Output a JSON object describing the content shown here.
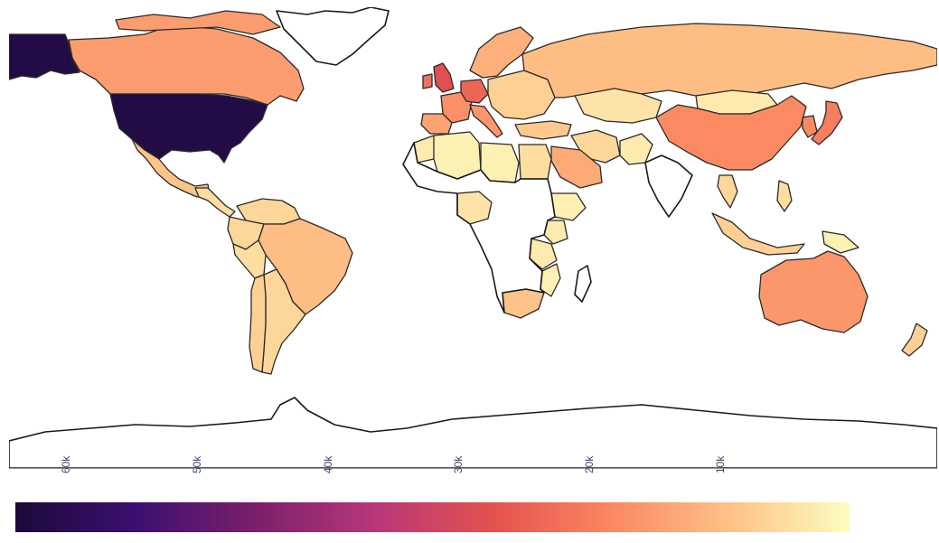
{
  "colors": {
    "ramp": [
      "#fcfdbf",
      "#fec287",
      "#fb8861",
      "#e3514f",
      "#b73779",
      "#7a1f6b",
      "#3b0f70",
      "#1c0a3a"
    ],
    "no_data": "#ffffff",
    "stroke": "#222222"
  },
  "colorbar": {
    "min": 0,
    "max": 64000,
    "ticks": [
      {
        "value": 60000,
        "label": "60k"
      },
      {
        "value": 50000,
        "label": "50k"
      },
      {
        "value": 40000,
        "label": "40k"
      },
      {
        "value": 30000,
        "label": "30k"
      },
      {
        "value": 20000,
        "label": "20k"
      },
      {
        "value": 10000,
        "label": "10k"
      }
    ],
    "orientation": "horizontal-reversed"
  },
  "regions": [
    {
      "name": "Alaska",
      "value": 62000
    },
    {
      "name": "United States",
      "value": 62000
    },
    {
      "name": "Canada",
      "value": 15000
    },
    {
      "name": "Mexico",
      "value": 9000
    },
    {
      "name": "Central America",
      "value": 5000
    },
    {
      "name": "Brazil",
      "value": 10000
    },
    {
      "name": "Colombia",
      "value": 6000
    },
    {
      "name": "Venezuela",
      "value": 6000
    },
    {
      "name": "Peru",
      "value": 5000
    },
    {
      "name": "Argentina",
      "value": 6000
    },
    {
      "name": "Chile",
      "value": 7000
    },
    {
      "name": "United Kingdom",
      "value": 28000
    },
    {
      "name": "Ireland",
      "value": 22000
    },
    {
      "name": "France",
      "value": 17000
    },
    {
      "name": "Germany",
      "value": 24000
    },
    {
      "name": "Spain",
      "value": 14000
    },
    {
      "name": "Italy",
      "value": 16000
    },
    {
      "name": "Scandinavia",
      "value": 12000
    },
    {
      "name": "Eastern Europe",
      "value": 7000
    },
    {
      "name": "Russia",
      "value": 10000
    },
    {
      "name": "Kazakhstan",
      "value": 4000
    },
    {
      "name": "Mongolia",
      "value": 3000
    },
    {
      "name": "Turkey",
      "value": 8000
    },
    {
      "name": "Saudi Arabia",
      "value": 13000
    },
    {
      "name": "Iran",
      "value": 6000
    },
    {
      "name": "Pakistan",
      "value": 3000
    },
    {
      "name": "China",
      "value": 18000
    },
    {
      "name": "Japan",
      "value": 20000
    },
    {
      "name": "Korea",
      "value": 18000
    },
    {
      "name": "Thailand",
      "value": 6000
    },
    {
      "name": "Indonesia",
      "value": 7000
    },
    {
      "name": "Philippines",
      "value": 5000
    },
    {
      "name": "Papua New Guinea",
      "value": 2000
    },
    {
      "name": "Australia",
      "value": 16000
    },
    {
      "name": "New Zealand",
      "value": 7000
    },
    {
      "name": "Algeria",
      "value": 2000
    },
    {
      "name": "Morocco",
      "value": 3000
    },
    {
      "name": "Egypt",
      "value": 5000
    },
    {
      "name": "Libya",
      "value": 2000
    },
    {
      "name": "Nigeria",
      "value": 4000
    },
    {
      "name": "Kenya",
      "value": 3000
    },
    {
      "name": "Ethiopia",
      "value": 2000
    },
    {
      "name": "Tanzania",
      "value": 3000
    },
    {
      "name": "Mozambique",
      "value": 2000
    },
    {
      "name": "South Africa",
      "value": 9000
    }
  ]
}
